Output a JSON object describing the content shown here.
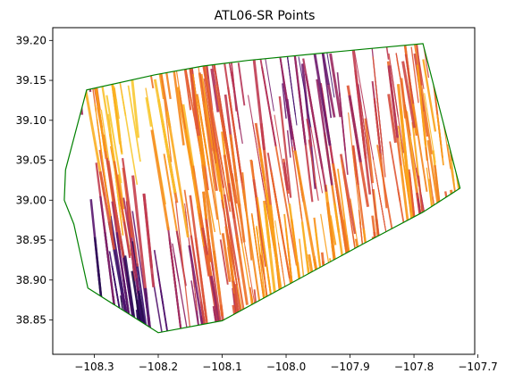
{
  "chart_data": {
    "type": "scatter",
    "title": "ATL06-SR Points",
    "xlabel": "",
    "ylabel": "",
    "xlim": [
      -108.365,
      -107.705
    ],
    "ylim": [
      38.807,
      39.216
    ],
    "xticks": [
      -108.3,
      -108.2,
      -108.1,
      -108.0,
      -107.9,
      -107.8,
      -107.7
    ],
    "xtick_labels": [
      "−108.3",
      "−108.2",
      "−108.1",
      "−108.0",
      "−107.9",
      "−107.8",
      "−107.7"
    ],
    "yticks": [
      38.85,
      38.9,
      38.95,
      39.0,
      39.05,
      39.1,
      39.15,
      39.2
    ],
    "ytick_labels": [
      "38.85",
      "38.90",
      "38.95",
      "39.00",
      "39.05",
      "39.10",
      "39.15",
      "39.20"
    ],
    "grid": false,
    "legend": "none",
    "colormap": "inferno",
    "colormap_stops": [
      "#0d0829",
      "#3b0f6f",
      "#7a1d6d",
      "#b93556",
      "#e65d2f",
      "#fa9a15",
      "#f8c932"
    ],
    "boundary_color": "#008000",
    "series": [
      {
        "kind": "polygon",
        "x": [
          -108.345,
          -108.312,
          -108.205,
          -108.13,
          -108.06,
          -107.945,
          -107.88,
          -107.786,
          -107.728,
          -107.786,
          -107.88,
          -108.1,
          -108.2,
          -108.31,
          -108.332,
          -108.347
        ],
        "y": [
          39.038,
          39.138,
          39.157,
          39.168,
          39.175,
          39.184,
          39.189,
          39.196,
          39.015,
          38.985,
          38.945,
          38.849,
          38.834,
          38.89,
          38.97,
          39.0
        ]
      }
    ]
  }
}
